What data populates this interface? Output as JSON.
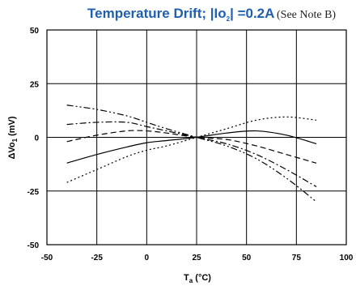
{
  "chart_data": {
    "type": "line",
    "title": {
      "main": "Temperature Drift;  |Io",
      "main_sub": "2",
      "main_tail": "| =0.2A",
      "note": "(See Note B)"
    },
    "xlabel": {
      "main": "T",
      "sub": "a",
      "tail": " (°C)"
    },
    "ylabel": {
      "main": "ΔVo",
      "sub": "1",
      "tail": " (mV)"
    },
    "xlim": [
      -50,
      100
    ],
    "ylim": [
      -50,
      50
    ],
    "xticks": [
      "-50",
      "-25",
      "0",
      "25",
      "50",
      "75",
      "100"
    ],
    "yticks": [
      "50",
      "25",
      "0",
      "-25",
      "-50"
    ],
    "grid": true,
    "colors": {
      "title": "#1f5fae",
      "lines": "#000000",
      "grid": "#000000"
    },
    "series": [
      {
        "style": "solid",
        "x": [
          -40,
          -25,
          -10,
          0,
          10,
          25,
          40,
          55,
          70,
          85
        ],
        "y": [
          -12,
          -8,
          -4.5,
          -2.5,
          -1.5,
          0,
          2,
          3,
          1,
          -3
        ]
      },
      {
        "style": "dotted",
        "x": [
          -40,
          -25,
          -10,
          0,
          10,
          25,
          40,
          55,
          70,
          85
        ],
        "y": [
          -21,
          -15,
          -9,
          -6,
          -4,
          0,
          4,
          8,
          9.5,
          8
        ]
      },
      {
        "style": "dashed",
        "x": [
          -40,
          -25,
          -10,
          0,
          10,
          25,
          40,
          55,
          70,
          85
        ],
        "y": [
          -2,
          1,
          3,
          3,
          2,
          0,
          -1,
          -4,
          -8,
          -12
        ]
      },
      {
        "style": "dash-dot",
        "x": [
          -40,
          -25,
          -10,
          0,
          10,
          25,
          40,
          55,
          70,
          85
        ],
        "y": [
          6,
          7,
          7,
          5,
          3,
          0,
          -3,
          -8,
          -15,
          -23
        ]
      },
      {
        "style": "dash-dot-dot",
        "x": [
          -40,
          -25,
          -10,
          0,
          10,
          25,
          40,
          55,
          70,
          85
        ],
        "y": [
          15,
          13,
          10,
          7,
          4,
          0,
          -4,
          -10,
          -19,
          -30
        ]
      }
    ]
  }
}
